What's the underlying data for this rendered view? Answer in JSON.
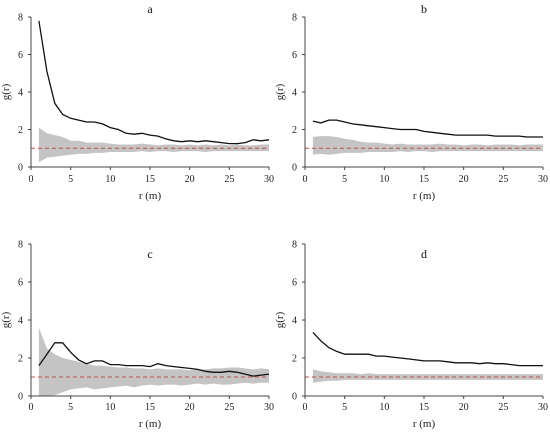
{
  "chart_data": [
    {
      "type": "line",
      "panel": "a",
      "xlabel": "r (m)",
      "ylabel": "g(r)",
      "xlim": [
        0,
        30
      ],
      "ylim": [
        0,
        8
      ],
      "xticks": [
        "0",
        "5",
        "10",
        "15",
        "20",
        "25",
        "30"
      ],
      "yticks": [
        "0",
        "2",
        "4",
        "6",
        "8"
      ],
      "reference_line": 1,
      "x": [
        1,
        2,
        3,
        4,
        5,
        6,
        7,
        8,
        9,
        10,
        11,
        12,
        13,
        14,
        15,
        16,
        17,
        18,
        19,
        20,
        21,
        22,
        23,
        24,
        25,
        26,
        27,
        28,
        29,
        30
      ],
      "observed": [
        7.8,
        5.1,
        3.4,
        2.8,
        2.6,
        2.5,
        2.4,
        2.4,
        2.3,
        2.1,
        2.0,
        1.8,
        1.75,
        1.8,
        1.7,
        1.65,
        1.5,
        1.4,
        1.35,
        1.4,
        1.35,
        1.4,
        1.35,
        1.3,
        1.25,
        1.25,
        1.3,
        1.45,
        1.4,
        1.45
      ],
      "envelope_upper": [
        2.1,
        1.8,
        1.7,
        1.6,
        1.4,
        1.4,
        1.3,
        1.3,
        1.3,
        1.25,
        1.2,
        1.2,
        1.2,
        1.25,
        1.2,
        1.15,
        1.2,
        1.2,
        1.15,
        1.2,
        1.15,
        1.2,
        1.15,
        1.2,
        1.15,
        1.2,
        1.15,
        1.15,
        1.2,
        1.2
      ],
      "envelope_lower": [
        0.25,
        0.5,
        0.55,
        0.6,
        0.65,
        0.7,
        0.7,
        0.75,
        0.75,
        0.8,
        0.8,
        0.8,
        0.8,
        0.85,
        0.8,
        0.85,
        0.85,
        0.8,
        0.85,
        0.85,
        0.85,
        0.8,
        0.85,
        0.85,
        0.85,
        0.85,
        0.85,
        0.85,
        0.85,
        0.85
      ]
    },
    {
      "type": "line",
      "panel": "b",
      "xlabel": "r (m)",
      "ylabel": "g(r)",
      "xlim": [
        0,
        30
      ],
      "ylim": [
        0,
        8
      ],
      "xticks": [
        "0",
        "5",
        "10",
        "15",
        "20",
        "25",
        "30"
      ],
      "yticks": [
        "0",
        "2",
        "4",
        "6",
        "8"
      ],
      "reference_line": 1,
      "x": [
        1,
        2,
        3,
        4,
        5,
        6,
        7,
        8,
        9,
        10,
        11,
        12,
        13,
        14,
        15,
        16,
        17,
        18,
        19,
        20,
        21,
        22,
        23,
        24,
        25,
        26,
        27,
        28,
        29,
        30
      ],
      "observed": [
        2.45,
        2.35,
        2.5,
        2.5,
        2.4,
        2.3,
        2.25,
        2.2,
        2.15,
        2.1,
        2.05,
        2.0,
        2.0,
        2.0,
        1.9,
        1.85,
        1.8,
        1.75,
        1.7,
        1.7,
        1.7,
        1.7,
        1.7,
        1.65,
        1.65,
        1.65,
        1.65,
        1.6,
        1.6,
        1.6
      ],
      "envelope_upper": [
        1.6,
        1.65,
        1.65,
        1.6,
        1.5,
        1.45,
        1.35,
        1.3,
        1.3,
        1.25,
        1.2,
        1.25,
        1.2,
        1.2,
        1.2,
        1.2,
        1.25,
        1.2,
        1.2,
        1.15,
        1.2,
        1.2,
        1.15,
        1.2,
        1.2,
        1.2,
        1.15,
        1.2,
        1.2,
        1.2
      ],
      "envelope_lower": [
        0.65,
        0.7,
        0.65,
        0.7,
        0.75,
        0.75,
        0.75,
        0.8,
        0.8,
        0.8,
        0.8,
        0.85,
        0.8,
        0.85,
        0.85,
        0.8,
        0.85,
        0.85,
        0.85,
        0.85,
        0.85,
        0.85,
        0.85,
        0.85,
        0.85,
        0.85,
        0.85,
        0.85,
        0.85,
        0.85
      ]
    },
    {
      "type": "line",
      "panel": "c",
      "xlabel": "r (m)",
      "ylabel": "g(r)",
      "xlim": [
        0,
        30
      ],
      "ylim": [
        0,
        8
      ],
      "xticks": [
        "0",
        "5",
        "10",
        "15",
        "20",
        "25",
        "30"
      ],
      "yticks": [
        "0",
        "2",
        "4",
        "6",
        "8"
      ],
      "reference_line": 1,
      "x": [
        1,
        2,
        3,
        4,
        5,
        6,
        7,
        8,
        9,
        10,
        11,
        12,
        13,
        14,
        15,
        16,
        17,
        18,
        19,
        20,
        21,
        22,
        23,
        24,
        25,
        26,
        27,
        28,
        29,
        30
      ],
      "observed": [
        1.6,
        2.2,
        2.8,
        2.8,
        2.3,
        1.9,
        1.7,
        1.85,
        1.85,
        1.65,
        1.65,
        1.6,
        1.6,
        1.6,
        1.55,
        1.7,
        1.6,
        1.55,
        1.5,
        1.45,
        1.4,
        1.3,
        1.25,
        1.25,
        1.3,
        1.25,
        1.15,
        1.05,
        1.1,
        1.15
      ],
      "envelope_upper": [
        3.6,
        2.5,
        2.2,
        2.0,
        1.9,
        1.8,
        1.7,
        1.6,
        1.6,
        1.55,
        1.5,
        1.5,
        1.45,
        1.45,
        1.4,
        1.45,
        1.4,
        1.4,
        1.4,
        1.35,
        1.4,
        1.4,
        1.45,
        1.45,
        1.5,
        1.5,
        1.45,
        1.4,
        1.45,
        1.4
      ],
      "envelope_lower": [
        0.0,
        0.0,
        0.05,
        0.2,
        0.35,
        0.4,
        0.45,
        0.35,
        0.4,
        0.45,
        0.5,
        0.55,
        0.45,
        0.55,
        0.6,
        0.55,
        0.6,
        0.6,
        0.55,
        0.6,
        0.65,
        0.6,
        0.65,
        0.6,
        0.6,
        0.65,
        0.7,
        0.65,
        0.7,
        0.7
      ]
    },
    {
      "type": "line",
      "panel": "d",
      "xlabel": "r (m)",
      "ylabel": "g(r)",
      "xlim": [
        0,
        30
      ],
      "ylim": [
        0,
        8
      ],
      "xticks": [
        "0",
        "5",
        "10",
        "15",
        "20",
        "25",
        "30"
      ],
      "yticks": [
        "0",
        "2",
        "4",
        "6",
        "8"
      ],
      "reference_line": 1,
      "x": [
        1,
        2,
        3,
        4,
        5,
        6,
        7,
        8,
        9,
        10,
        11,
        12,
        13,
        14,
        15,
        16,
        17,
        18,
        19,
        20,
        21,
        22,
        23,
        24,
        25,
        26,
        27,
        28,
        29,
        30
      ],
      "observed": [
        3.35,
        2.9,
        2.55,
        2.35,
        2.2,
        2.2,
        2.2,
        2.2,
        2.1,
        2.1,
        2.05,
        2.0,
        1.95,
        1.9,
        1.85,
        1.85,
        1.85,
        1.8,
        1.75,
        1.75,
        1.75,
        1.7,
        1.75,
        1.7,
        1.7,
        1.65,
        1.6,
        1.6,
        1.6,
        1.6
      ],
      "envelope_upper": [
        1.4,
        1.3,
        1.25,
        1.2,
        1.2,
        1.2,
        1.15,
        1.2,
        1.15,
        1.15,
        1.15,
        1.15,
        1.15,
        1.15,
        1.15,
        1.15,
        1.15,
        1.15,
        1.15,
        1.15,
        1.15,
        1.15,
        1.15,
        1.15,
        1.15,
        1.15,
        1.15,
        1.15,
        1.15,
        1.15
      ],
      "envelope_lower": [
        0.7,
        0.75,
        0.8,
        0.8,
        0.85,
        0.85,
        0.85,
        0.85,
        0.85,
        0.85,
        0.85,
        0.85,
        0.85,
        0.85,
        0.85,
        0.85,
        0.85,
        0.85,
        0.85,
        0.85,
        0.85,
        0.85,
        0.85,
        0.85,
        0.85,
        0.85,
        0.85,
        0.85,
        0.85,
        0.85
      ]
    }
  ],
  "colors": {
    "observed_line": "#111111",
    "envelope_fill": "#c4c4c4",
    "reference_line": "#c0504d",
    "axis": "#444444"
  }
}
